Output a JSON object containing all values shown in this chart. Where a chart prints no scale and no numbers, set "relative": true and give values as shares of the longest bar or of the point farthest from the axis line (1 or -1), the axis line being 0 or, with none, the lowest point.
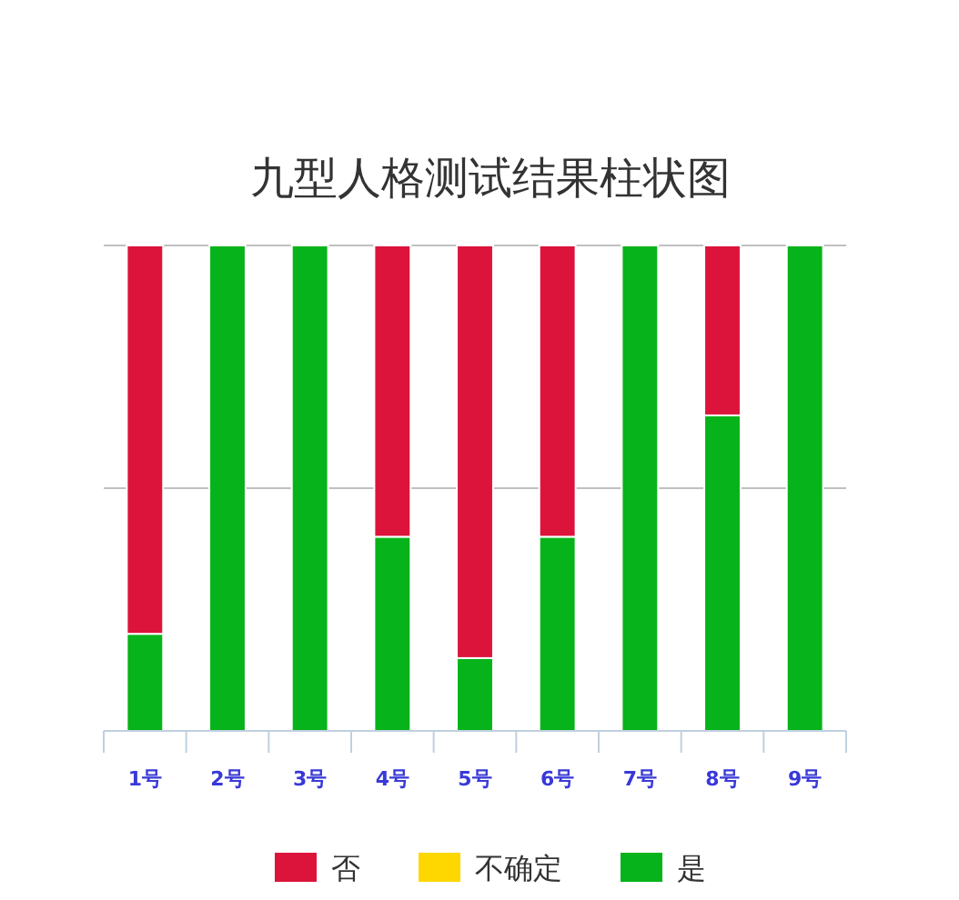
{
  "chart_data": {
    "type": "bar",
    "title": "九型人格测试结果柱状图",
    "stacked": true,
    "relative": true,
    "categories": [
      "1号",
      "2号",
      "3号",
      "4号",
      "5号",
      "6号",
      "7号",
      "8号",
      "9号"
    ],
    "series": [
      {
        "name": "是",
        "color": "#07b31a",
        "values": [
          0.2,
          1,
          1,
          0.4,
          0.15,
          0.4,
          1,
          0.65,
          1
        ]
      },
      {
        "name": "不确定",
        "color": "#ffd700",
        "values": [
          0,
          0,
          0,
          0,
          0,
          0,
          0,
          0,
          0
        ]
      },
      {
        "name": "否",
        "color": "#dc143c",
        "values": [
          0.8,
          0,
          0,
          0.6,
          0.85,
          0.6,
          0,
          0.35,
          0
        ]
      }
    ],
    "ref_lines": [
      {
        "axis": "y",
        "value": 0.5,
        "color": "#c0c0c0"
      },
      {
        "axis": "y",
        "value": 1,
        "color": "#c0c0c0"
      }
    ],
    "legend": "bottom"
  }
}
